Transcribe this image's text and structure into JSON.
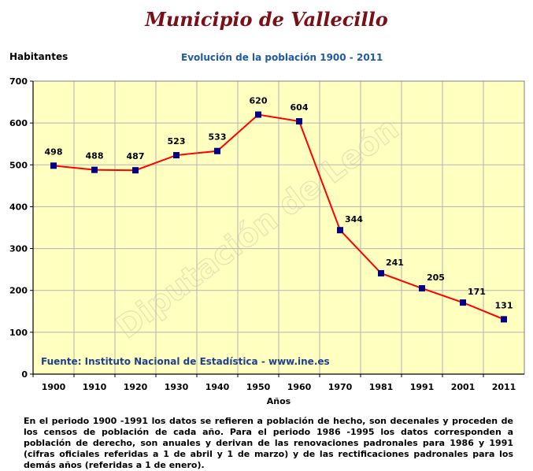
{
  "header": {
    "main_title": "Municipio de Vallecillo",
    "chart_title": "Evolución de la población 1900 - 2011",
    "y_axis_label": "Habitantes",
    "x_axis_label": "Años"
  },
  "source": "Fuente: Instituto Nacional de Estadística - www.ine.es",
  "watermark": "Diputación de León",
  "footnote": "En el periodo 1900 -1991 los datos se refieren a población de hecho, son decenales y proceden de los censos de población de cada año. Para el periodo 1986 -1995 los datos corresponden a población de derecho, son anuales y derivan de las renovaciones padronales para 1986 y 1991 (cifras oficiales referidas a 1 de abril y 1 de marzo) y de las rectificaciones padronales para los demás años (referidas a 1 de enero).",
  "colors": {
    "plot_background": "#ffffc0",
    "line": "#ff0000",
    "marker": "#000080",
    "title": "#7b0f18",
    "chart_title": "#1f5aa8",
    "source": "#1f3f8f"
  },
  "chart_data": {
    "type": "line",
    "title": "Evolución de la población 1900 - 2011",
    "xlabel": "Años",
    "ylabel": "Habitantes",
    "categories": [
      "1900",
      "1910",
      "1920",
      "1930",
      "1940",
      "1950",
      "1960",
      "1970",
      "1981",
      "1991",
      "2001",
      "2011"
    ],
    "series": [
      {
        "values": [
          498,
          488,
          487,
          523,
          533,
          620,
          604,
          344,
          241,
          205,
          171,
          131
        ]
      }
    ],
    "ylim": [
      0,
      700
    ],
    "yticks": [
      0,
      100,
      200,
      300,
      400,
      500,
      600,
      700
    ],
    "grid": true,
    "data_labels": true,
    "legend": "none"
  }
}
